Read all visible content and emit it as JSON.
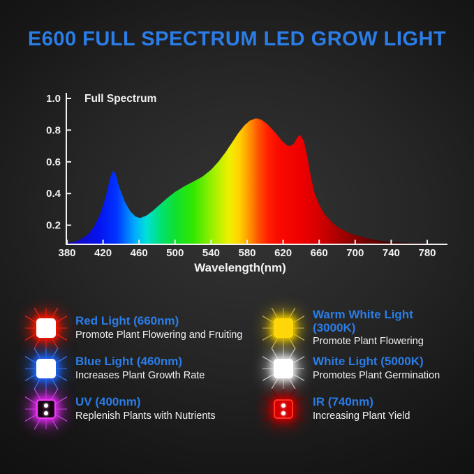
{
  "title": "E600 FULL SPECTRUM LED GROW LIGHT",
  "colors": {
    "accent_blue": "#2b7de8",
    "axis": "#f2f2f2",
    "text_white": "#f2f2f2",
    "background_center": "#343434",
    "background_edge": "#0e0e0e"
  },
  "chart_data": {
    "type": "area",
    "title": "Full Spectrum",
    "xlabel": "Wavelength(nm)",
    "ylabel": "",
    "x_ticks": [
      380,
      420,
      460,
      500,
      540,
      580,
      620,
      660,
      700,
      740,
      780
    ],
    "y_ticks": [
      0.2,
      0.4,
      0.6,
      0.8,
      1.0
    ],
    "xlim": [
      380,
      800
    ],
    "ylim": [
      0,
      1.08
    ],
    "grid": false,
    "legend_position": "none",
    "series": [
      {
        "name": "Full Spectrum",
        "x": [
          380,
          388,
          395,
          403,
          410,
          417,
          423,
          428,
          431,
          434,
          438,
          444,
          450,
          456,
          461,
          468,
          475,
          483,
          492,
          500,
          510,
          520,
          530,
          540,
          548,
          556,
          563,
          570,
          577,
          583,
          590,
          596,
          602,
          608,
          614,
          619,
          624,
          628,
          632,
          636,
          639,
          643,
          647,
          651,
          655,
          660,
          666,
          673,
          680,
          688,
          696,
          705,
          715,
          725,
          735,
          745,
          760,
          780
        ],
        "y": [
          0.088,
          0.095,
          0.11,
          0.14,
          0.19,
          0.27,
          0.38,
          0.5,
          0.545,
          0.52,
          0.44,
          0.35,
          0.29,
          0.255,
          0.245,
          0.26,
          0.29,
          0.33,
          0.375,
          0.41,
          0.445,
          0.475,
          0.505,
          0.55,
          0.6,
          0.66,
          0.72,
          0.78,
          0.83,
          0.86,
          0.875,
          0.865,
          0.84,
          0.805,
          0.765,
          0.73,
          0.705,
          0.7,
          0.715,
          0.755,
          0.77,
          0.73,
          0.63,
          0.5,
          0.4,
          0.33,
          0.27,
          0.225,
          0.19,
          0.165,
          0.145,
          0.13,
          0.115,
          0.105,
          0.097,
          0.092,
          0.088,
          0.086
        ]
      }
    ],
    "gradient_stops": [
      {
        "wl": 380,
        "color": "#1a06b0"
      },
      {
        "wl": 415,
        "color": "#0512f0"
      },
      {
        "wl": 435,
        "color": "#0033ff"
      },
      {
        "wl": 455,
        "color": "#00aaff"
      },
      {
        "wl": 468,
        "color": "#00e0d8"
      },
      {
        "wl": 485,
        "color": "#00e070"
      },
      {
        "wl": 500,
        "color": "#10e030"
      },
      {
        "wl": 520,
        "color": "#30e800"
      },
      {
        "wl": 542,
        "color": "#9cf000"
      },
      {
        "wl": 560,
        "color": "#f0f000"
      },
      {
        "wl": 572,
        "color": "#ffd000"
      },
      {
        "wl": 583,
        "color": "#ff9000"
      },
      {
        "wl": 593,
        "color": "#ff5000"
      },
      {
        "wl": 603,
        "color": "#ff2000"
      },
      {
        "wl": 615,
        "color": "#fa0a00"
      },
      {
        "wl": 640,
        "color": "#ee0000"
      },
      {
        "wl": 660,
        "color": "#d40000"
      },
      {
        "wl": 680,
        "color": "#ac0000"
      },
      {
        "wl": 700,
        "color": "#860000"
      },
      {
        "wl": 725,
        "color": "#5a0000"
      },
      {
        "wl": 750,
        "color": "#3a0000"
      },
      {
        "wl": 780,
        "color": "#260000"
      }
    ]
  },
  "legend": {
    "items": [
      {
        "id": "red",
        "title": "Red Light (660nm)",
        "desc": "Promote Plant Flowering and Fruiting",
        "icon": {
          "name": "red-led-icon",
          "square": "#ffffff",
          "glow": "#ff1400",
          "rays": "#ff2a1a",
          "border": "",
          "dots": false,
          "dot_color": ""
        }
      },
      {
        "id": "warm-white",
        "title": "Warm White Light (3000K)",
        "desc": "Promote Plant Flowering",
        "icon": {
          "name": "warm-white-led-icon",
          "square": "#ffd60a",
          "glow": "#e6c400",
          "rays": "#cfc468",
          "border": "",
          "dots": false,
          "dot_color": ""
        }
      },
      {
        "id": "blue",
        "title": "Blue Light (460nm)",
        "desc": "Increases Plant Growth Rate",
        "icon": {
          "name": "blue-led-icon",
          "square": "#ffffff",
          "glow": "#1f66ff",
          "rays": "#4f8cff",
          "border": "",
          "dots": false,
          "dot_color": ""
        }
      },
      {
        "id": "white",
        "title": "White Light (5000K)",
        "desc": "Promotes Plant Germination",
        "icon": {
          "name": "white-led-icon",
          "square": "#ffffff",
          "glow": "#e0e0e0",
          "rays": "#d8d8d8",
          "border": "",
          "dots": false,
          "dot_color": ""
        }
      },
      {
        "id": "uv",
        "title": "UV (400nm)",
        "desc": "Replenish Plants with Nutrients",
        "icon": {
          "name": "uv-led-icon",
          "square": "#1c0418",
          "glow": "#d926e8",
          "rays": "#cf5ef2",
          "border": "#ef3df5",
          "dots": true,
          "dot_color": "#ffffff"
        }
      },
      {
        "id": "ir",
        "title": "IR (740nm)",
        "desc": "Increasing Plant Yield",
        "icon": {
          "name": "ir-led-icon",
          "square": "#d40000",
          "glow": "#bb0000",
          "rays": "#5a0000",
          "border": "#ff3322",
          "dots": true,
          "dot_color": "#ffffff"
        }
      }
    ]
  }
}
